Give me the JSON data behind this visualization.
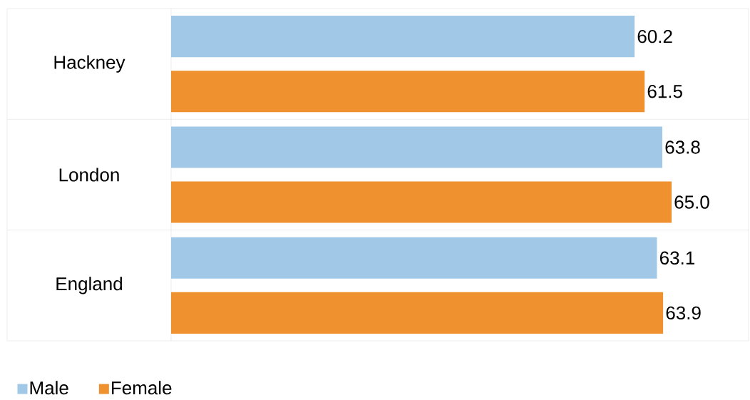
{
  "chart_data": {
    "type": "bar",
    "orientation": "horizontal",
    "categories": [
      "Hackney",
      "London",
      "England"
    ],
    "series": [
      {
        "name": "Male",
        "color": "#a1c9e7",
        "values": [
          60.2,
          63.8,
          63.1
        ],
        "value_labels": [
          "60.2",
          "63.8",
          "63.1"
        ]
      },
      {
        "name": "Female",
        "color": "#f0912f",
        "values": [
          61.5,
          65.0,
          63.9
        ],
        "value_labels": [
          "61.5",
          "65.0",
          "63.9"
        ]
      }
    ],
    "xlim": [
      0,
      75
    ],
    "legend": "bottom left",
    "tick_labels": "y",
    "grid": "y"
  }
}
